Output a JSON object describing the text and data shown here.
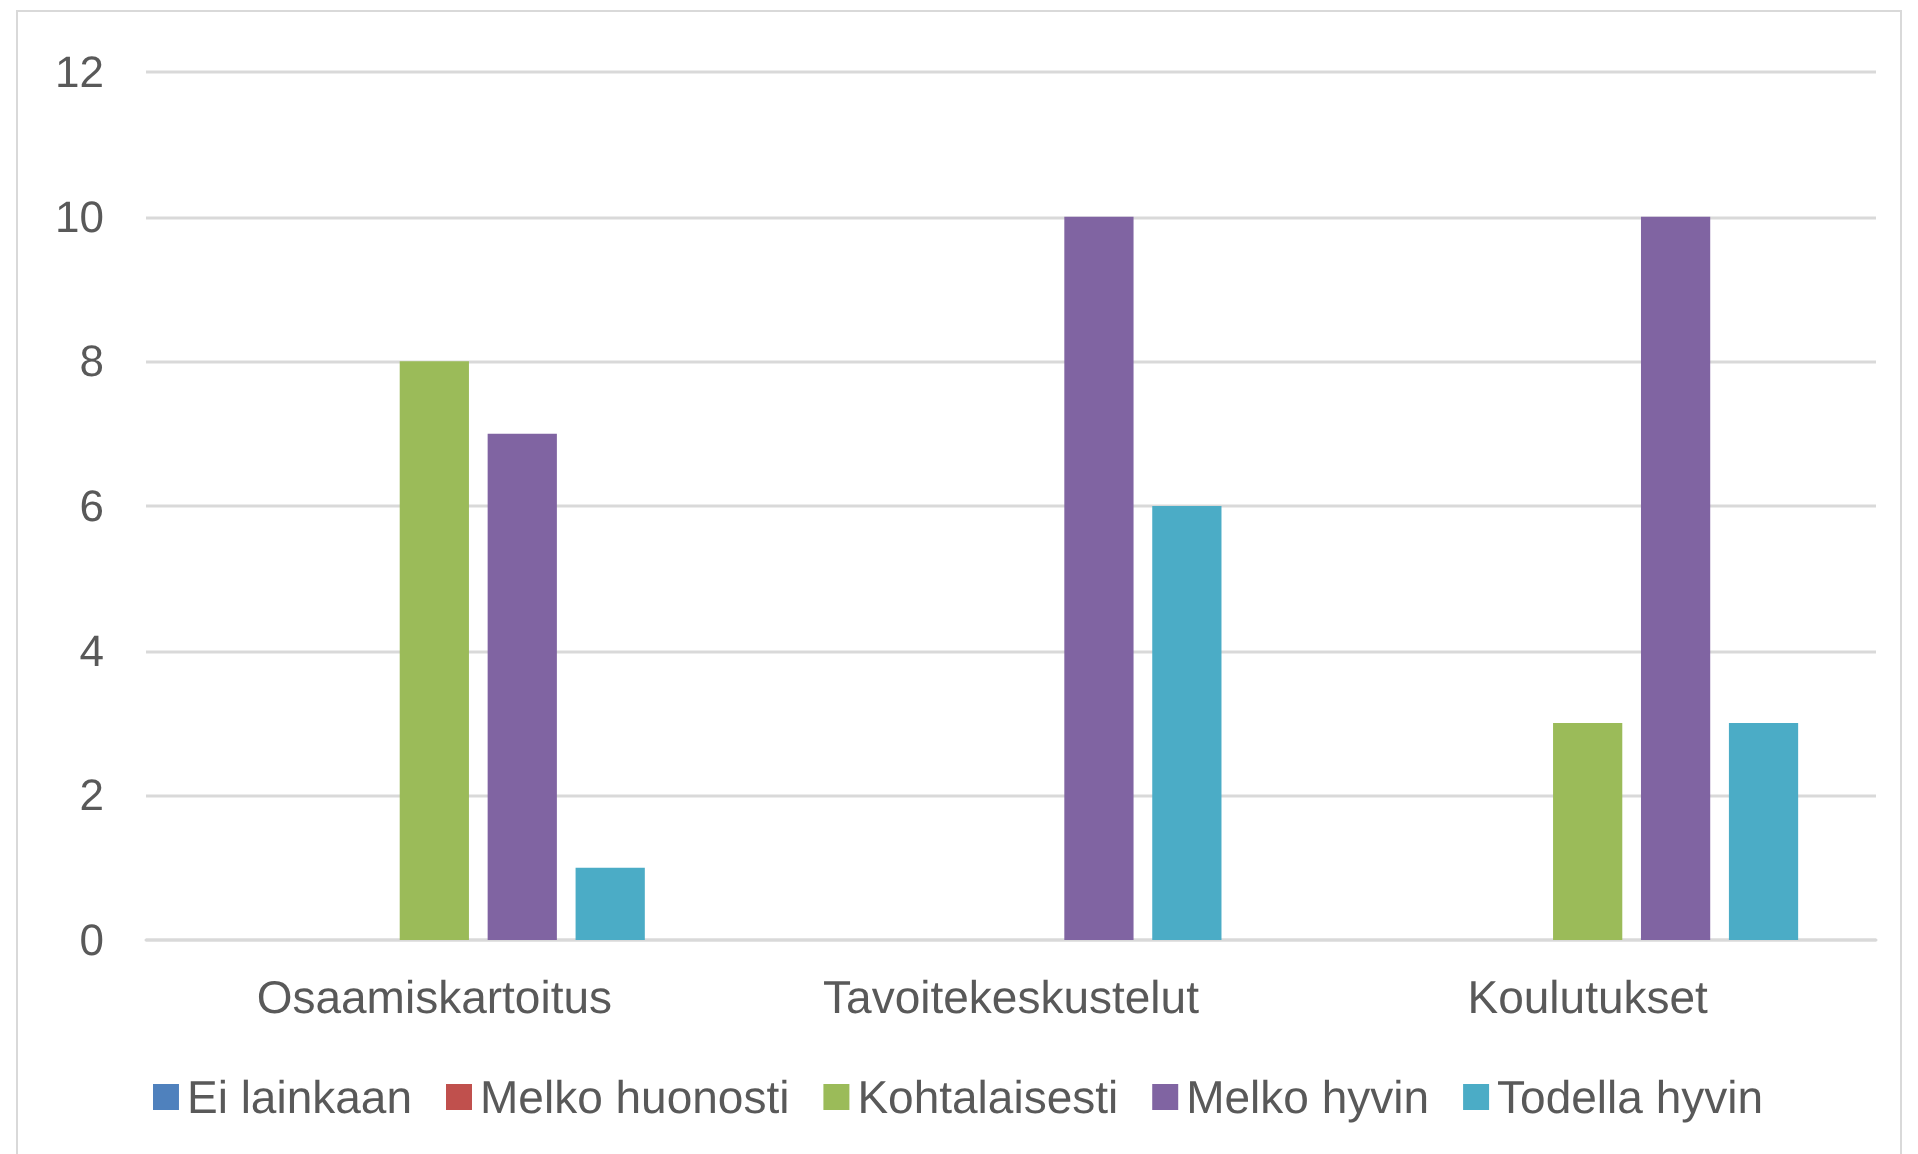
{
  "chart_data": {
    "type": "bar",
    "categories": [
      "Osaamiskartoitus",
      "Tavoitekeskustelut",
      "Koulutukset"
    ],
    "series": [
      {
        "name": "Ei lainkaan",
        "color": "#4f81bd",
        "values": [
          0,
          0,
          0
        ]
      },
      {
        "name": "Melko huonosti",
        "color": "#c0504d",
        "values": [
          0,
          0,
          0
        ]
      },
      {
        "name": "Kohtalaisesti",
        "color": "#9bbb59",
        "values": [
          8,
          0,
          3
        ]
      },
      {
        "name": "Melko hyvin",
        "color": "#8064a2",
        "values": [
          7,
          10,
          10
        ]
      },
      {
        "name": "Todella hyvin",
        "color": "#4bacc6",
        "values": [
          1,
          6,
          3
        ]
      }
    ],
    "ylim": [
      0,
      12
    ],
    "yticks": [
      0,
      2,
      4,
      6,
      8,
      10,
      12
    ],
    "grid": "y",
    "legend": "bottom"
  }
}
